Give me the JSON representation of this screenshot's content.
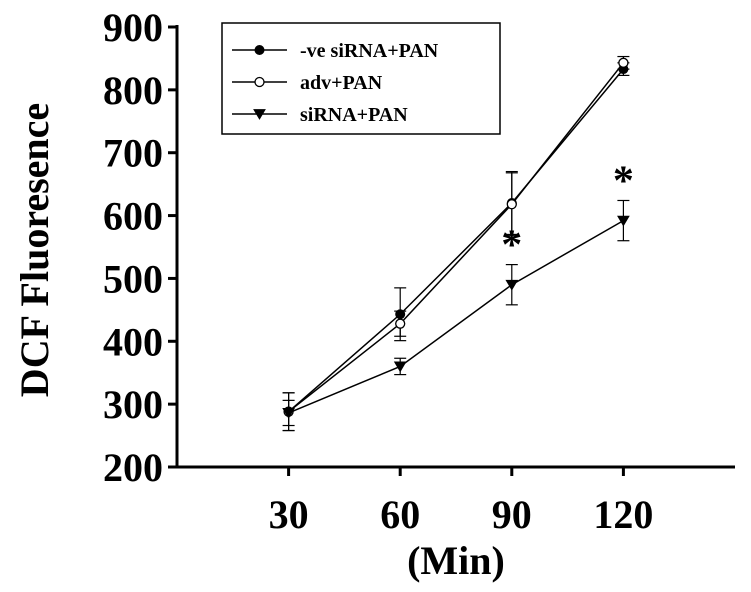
{
  "chart_data": {
    "type": "line",
    "title": "",
    "xlabel": "(Min)",
    "ylabel": "DCF Fluoresence",
    "x": [
      30,
      60,
      90,
      120
    ],
    "xticks": [
      "30",
      "60",
      "90",
      "120"
    ],
    "yticks": [
      "200",
      "300",
      "400",
      "500",
      "600",
      "700",
      "800",
      "900"
    ],
    "xlim": [
      0,
      150
    ],
    "ylim": [
      200,
      900
    ],
    "grid": false,
    "legend_position": "top-left",
    "series": [
      {
        "name": "-ve siRNA+PAN",
        "marker": "filled-circle",
        "color": "#000000",
        "values": [
          288,
          443,
          620,
          833
        ],
        "errors": [
          30,
          42,
          50,
          10
        ]
      },
      {
        "name": "adv+PAN",
        "marker": "open-circle",
        "color": "#000000",
        "values": [
          288,
          428,
          618,
          843
        ],
        "errors": [
          30,
          20,
          50,
          10
        ]
      },
      {
        "name": "siRNA+PAN",
        "marker": "filled-triangle-down",
        "color": "#000000",
        "values": [
          286,
          360,
          490,
          592
        ],
        "errors": [
          20,
          13,
          32,
          32
        ]
      }
    ],
    "annotations": [
      {
        "text": "*",
        "x": 90
      },
      {
        "text": "*",
        "x": 120
      }
    ]
  }
}
